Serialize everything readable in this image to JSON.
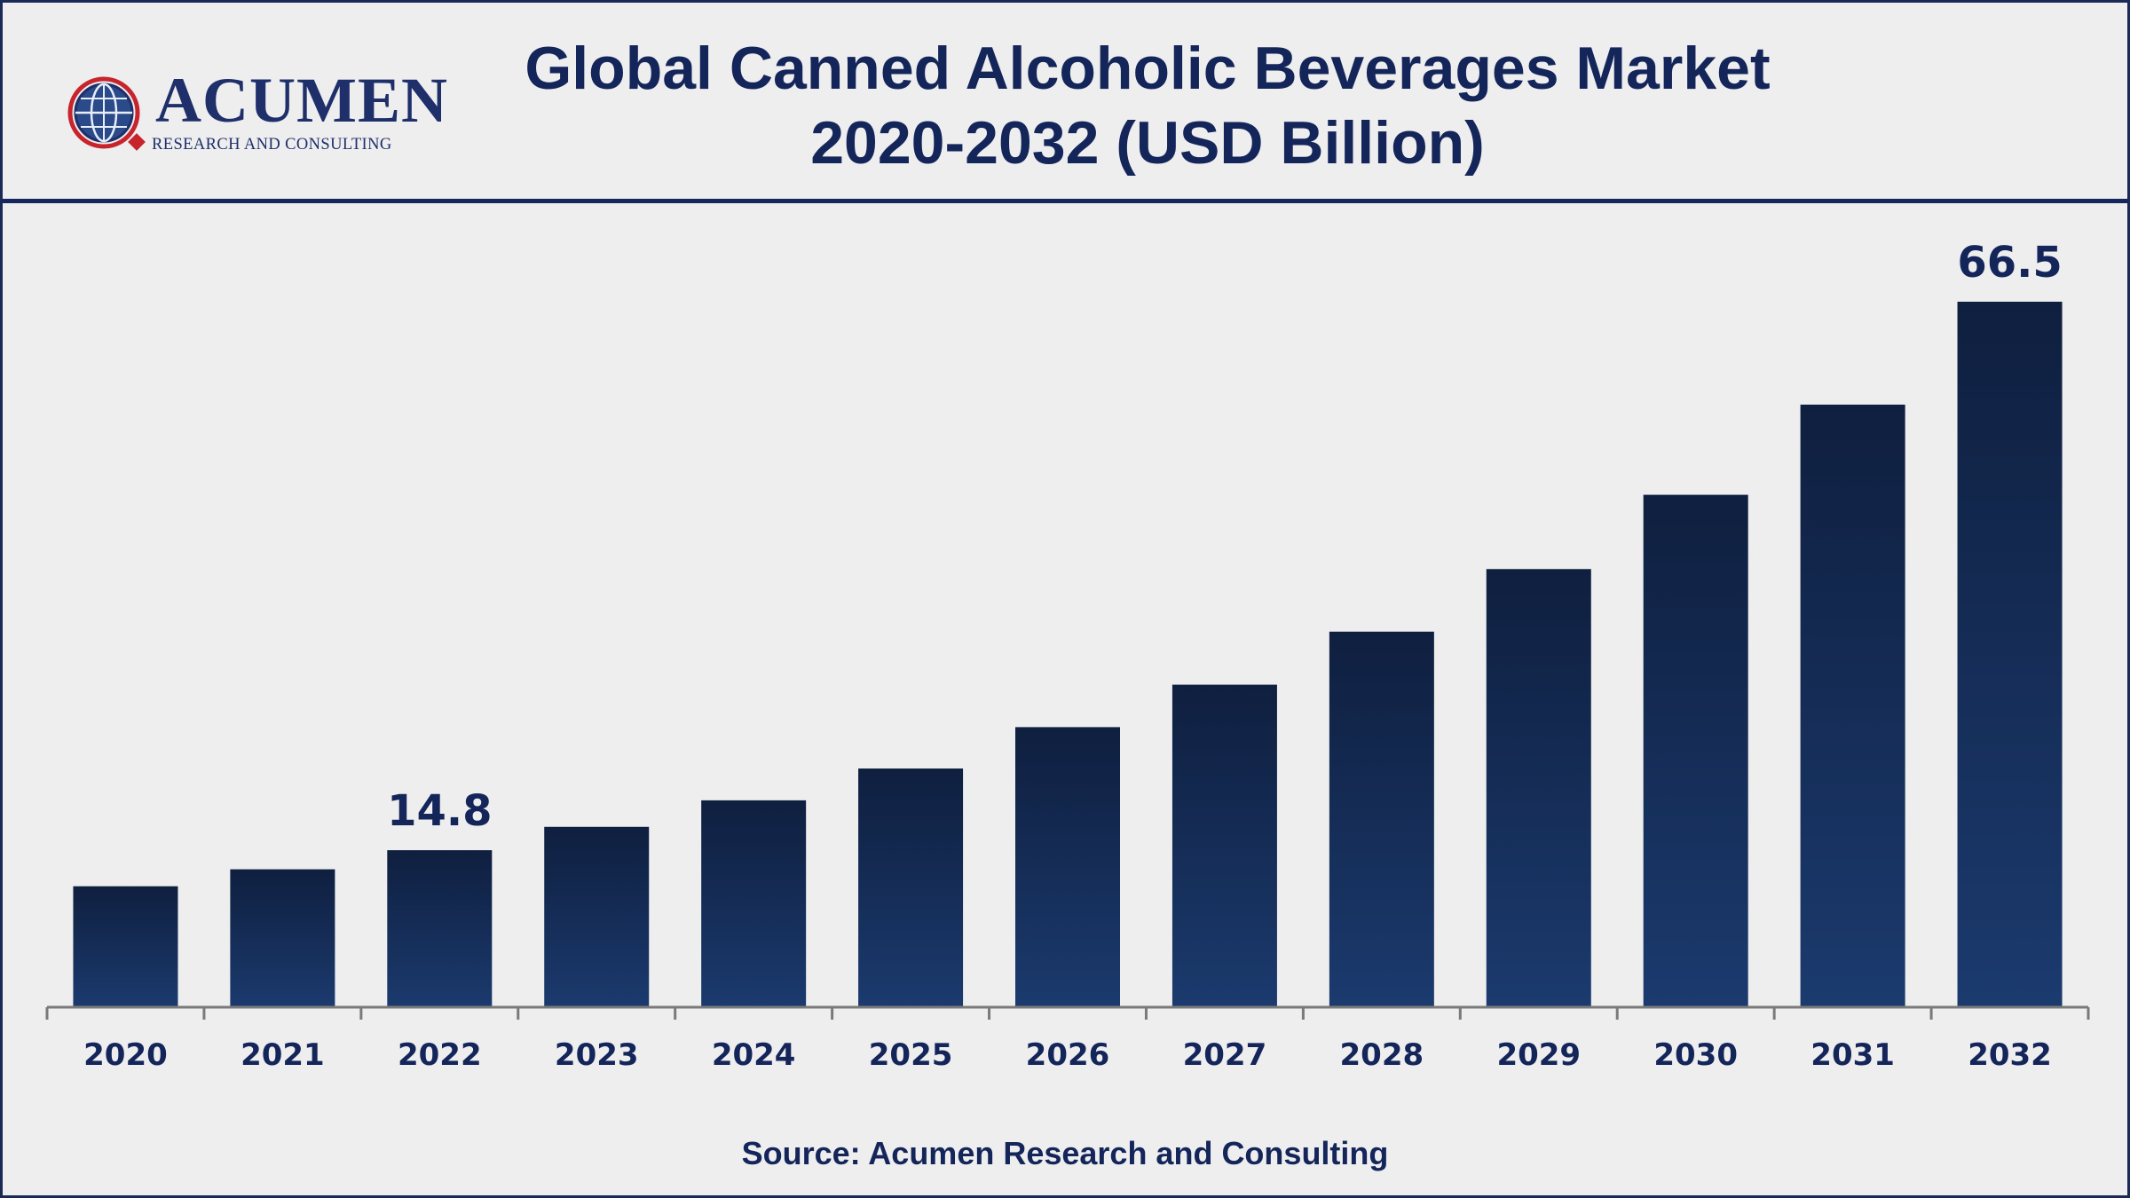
{
  "header": {
    "logo_wordmark": "ACUMEN",
    "logo_tagline": "RESEARCH AND CONSULTING",
    "title_line1": "Global Canned Alcoholic Beverages Market",
    "title_line2": "2020-2032 (USD Billion)"
  },
  "footer": {
    "source": "Source: Acumen Research and Consulting"
  },
  "colors": {
    "bar_top": "#0f1f3f",
    "bar_bottom": "#1b3a6e",
    "text": "#14255a",
    "axis": "#7a7a7a"
  },
  "chart_data": {
    "type": "bar",
    "title": "Global Canned Alcoholic Beverages Market 2020-2032 (USD Billion)",
    "xlabel": "",
    "ylabel": "",
    "grid": false,
    "ylim": [
      0,
      66.5
    ],
    "categories": [
      "2020",
      "2021",
      "2022",
      "2023",
      "2024",
      "2025",
      "2026",
      "2027",
      "2028",
      "2029",
      "2030",
      "2031",
      "2032"
    ],
    "values": [
      11.4,
      13.0,
      14.8,
      17.0,
      19.5,
      22.5,
      26.4,
      30.4,
      35.4,
      41.3,
      48.3,
      56.8,
      66.5
    ],
    "data_labels": [
      {
        "category": "2022",
        "text": "14.8"
      },
      {
        "category": "2032",
        "text": "66.5"
      }
    ]
  }
}
